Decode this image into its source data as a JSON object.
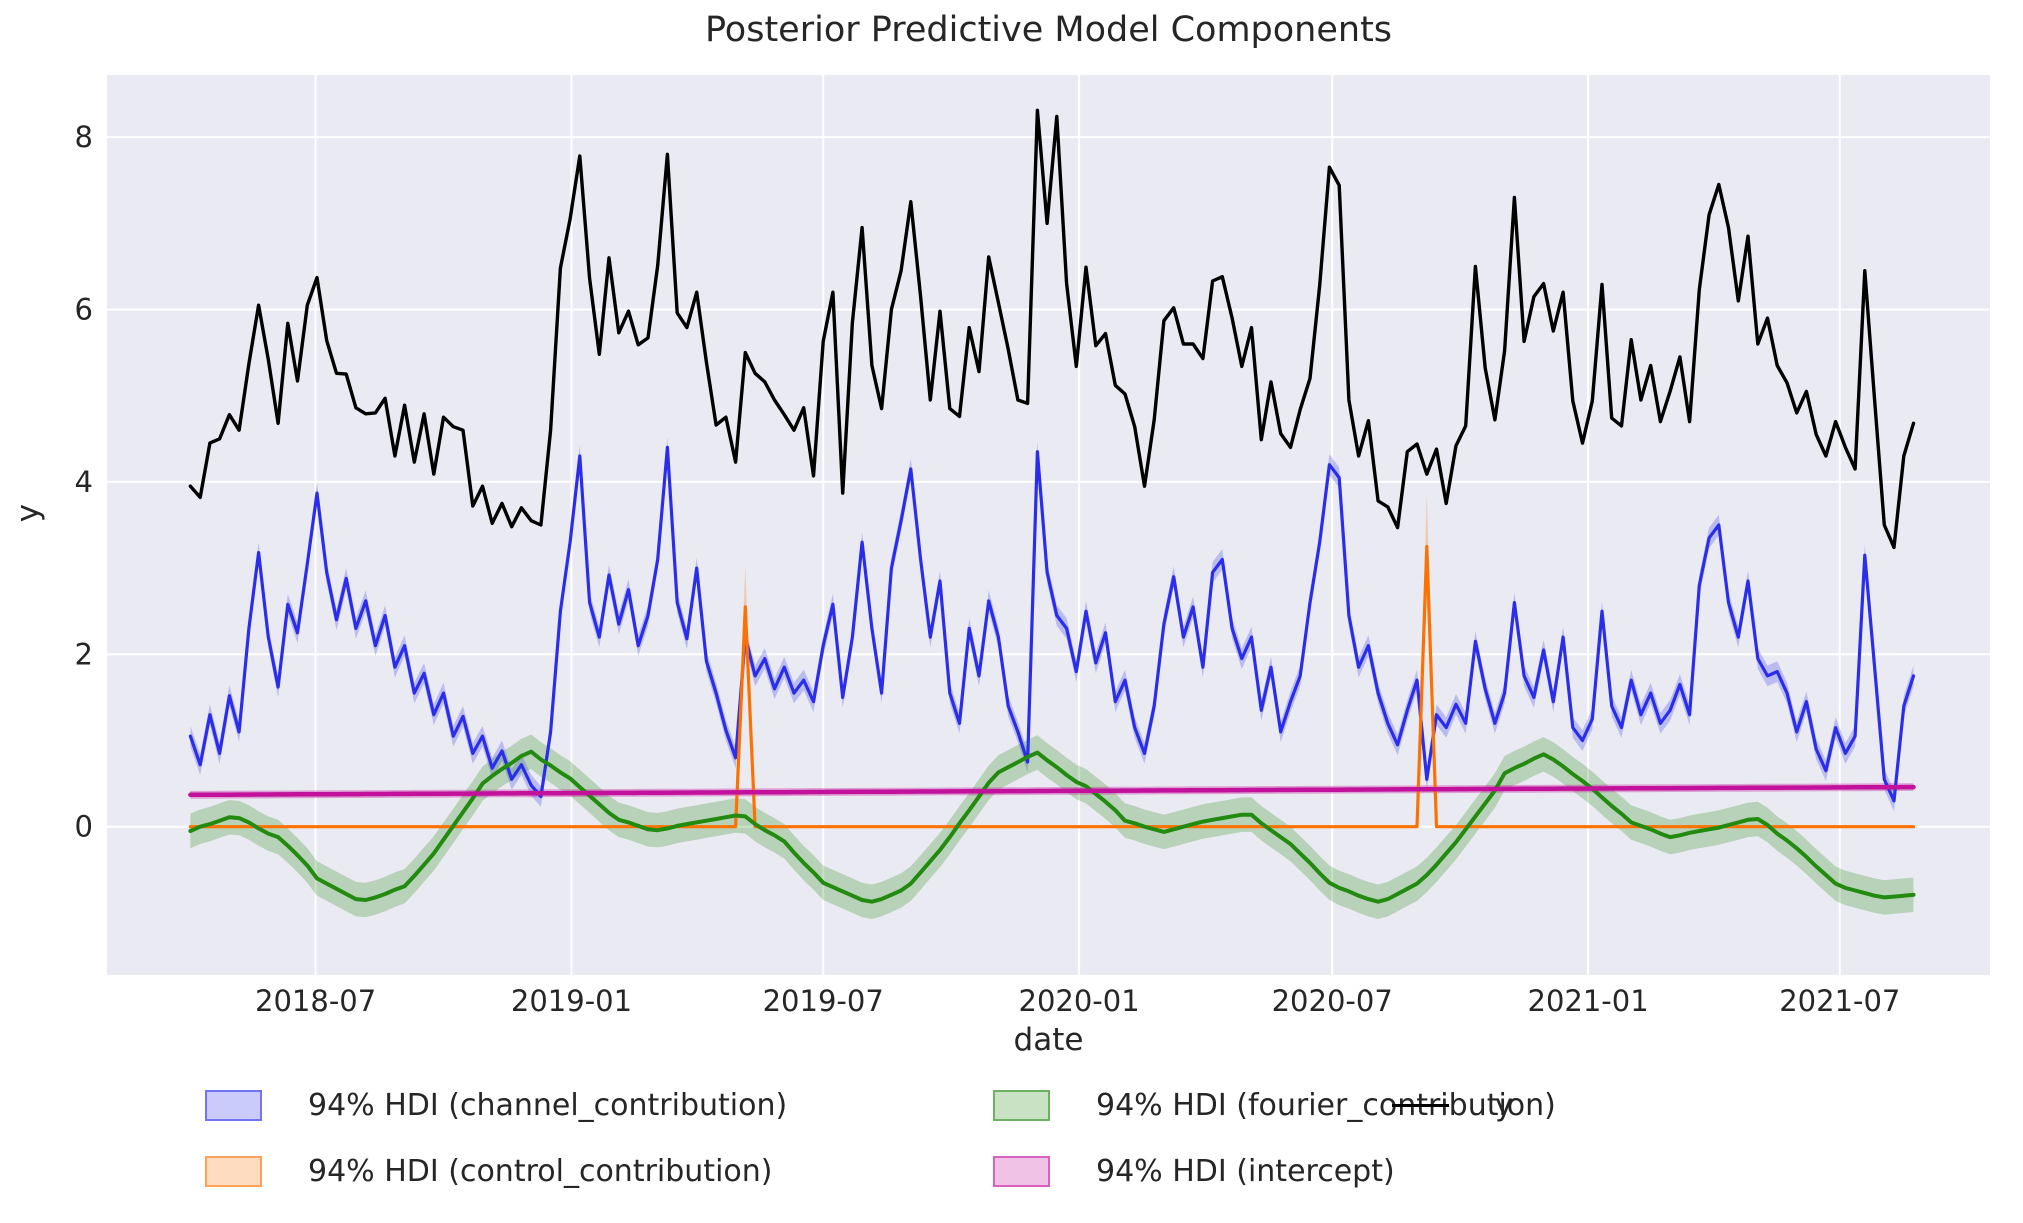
{
  "title": "Posterior Predictive Model Components",
  "axes": {
    "xlabel": "date",
    "ylabel": "y",
    "x_tick_labels": [
      "2018-07",
      "2019-01",
      "2019-07",
      "2020-01",
      "2020-07",
      "2021-01",
      "2021-07"
    ],
    "x_tick_dates": [
      "2018-07-01",
      "2019-01-01",
      "2019-07-01",
      "2020-01-01",
      "2020-07-01",
      "2021-01-01",
      "2021-07-01"
    ],
    "y_tick_labels": [
      "8",
      "6",
      "4",
      "2",
      "0"
    ],
    "y_tick_values": [
      8,
      6,
      4,
      2,
      0
    ],
    "x_domain": [
      "2018-02-01",
      "2021-10-17"
    ],
    "y_domain": [
      -1.72,
      8.72
    ],
    "grid": "on",
    "background": "#eaeaf2",
    "grid_color": "#ffffff"
  },
  "legend": {
    "items": [
      {
        "label": "94% HDI (channel_contribution)",
        "color": "#2a2eec",
        "swatch": "patch"
      },
      {
        "label": "94% HDI (control_contribution)",
        "color": "#fc7202",
        "swatch": "patch"
      },
      {
        "label": "94% HDI (fourier_contribution)",
        "color": "#228a0f",
        "swatch": "patch"
      },
      {
        "label": "94% HDI (intercept)",
        "color": "#c2119b",
        "swatch": "patch"
      },
      {
        "label": "y",
        "color": "#000000",
        "swatch": "line"
      }
    ]
  },
  "chart_data": {
    "type": "line",
    "x_start": "2018-04-02",
    "freq_days": 7,
    "n": 178,
    "title": "Posterior Predictive Model Components",
    "xlabel": "date",
    "ylabel": "y",
    "series": [
      {
        "name": "y",
        "color": "#000000",
        "band": false,
        "values": [
          3.95,
          3.82,
          4.45,
          4.5,
          4.78,
          4.6,
          5.37,
          6.05,
          5.42,
          4.68,
          5.84,
          5.17,
          6.05,
          6.37,
          5.64,
          5.26,
          5.25,
          4.86,
          4.79,
          4.8,
          4.97,
          4.3,
          4.89,
          4.23,
          4.79,
          4.09,
          4.75,
          4.64,
          4.6,
          3.72,
          3.95,
          3.52,
          3.75,
          3.48,
          3.7,
          3.55,
          3.5,
          4.6,
          6.48,
          7.05,
          7.78,
          6.36,
          5.48,
          6.6,
          5.73,
          5.98,
          5.59,
          5.67,
          6.51,
          7.8,
          5.96,
          5.79,
          6.2,
          5.39,
          4.66,
          4.75,
          4.23,
          5.5,
          5.26,
          5.16,
          4.95,
          4.78,
          4.6,
          4.86,
          4.07,
          5.63,
          6.2,
          3.87,
          5.85,
          6.95,
          5.35,
          4.85,
          6.0,
          6.45,
          7.25,
          6.15,
          4.95,
          5.98,
          4.85,
          4.76,
          5.79,
          5.28,
          6.61,
          6.08,
          5.54,
          4.95,
          4.91,
          8.31,
          7.0,
          8.24,
          6.3,
          5.34,
          6.49,
          5.58,
          5.72,
          5.12,
          5.02,
          4.64,
          3.95,
          4.72,
          5.87,
          6.02,
          5.6,
          5.6,
          5.43,
          6.33,
          6.38,
          5.9,
          5.34,
          5.79,
          4.49,
          5.16,
          4.56,
          4.4,
          4.84,
          5.2,
          6.28,
          7.65,
          7.44,
          4.95,
          4.3,
          4.71,
          3.78,
          3.71,
          3.47,
          4.35,
          4.44,
          4.09,
          4.38,
          3.75,
          4.42,
          4.65,
          6.5,
          5.32,
          4.72,
          5.52,
          7.3,
          5.63,
          6.15,
          6.3,
          5.75,
          6.2,
          4.94,
          4.45,
          4.94,
          6.29,
          4.74,
          4.65,
          5.65,
          4.95,
          5.35,
          4.7,
          5.05,
          5.45,
          4.7,
          6.23,
          7.1,
          7.45,
          6.95,
          6.1,
          6.85,
          5.6,
          5.9,
          5.35,
          5.15,
          4.8,
          5.05,
          4.55,
          4.3,
          4.7,
          4.4,
          4.15,
          6.45,
          4.95,
          3.5,
          3.24,
          4.3,
          4.68
        ]
      },
      {
        "name": "channel_contribution",
        "color": "#2a2eec",
        "band": true,
        "band_halfwidth": 0.12,
        "band_alpha": 0.25,
        "values": [
          1.05,
          0.72,
          1.3,
          0.85,
          1.52,
          1.1,
          2.3,
          3.18,
          2.2,
          1.62,
          2.58,
          2.25,
          3.05,
          3.87,
          2.95,
          2.4,
          2.88,
          2.3,
          2.62,
          2.1,
          2.45,
          1.85,
          2.1,
          1.55,
          1.78,
          1.3,
          1.55,
          1.05,
          1.28,
          0.85,
          1.05,
          0.68,
          0.88,
          0.55,
          0.72,
          0.48,
          0.35,
          1.1,
          2.5,
          3.3,
          4.3,
          2.6,
          2.2,
          2.92,
          2.35,
          2.75,
          2.1,
          2.45,
          3.1,
          4.4,
          2.6,
          2.18,
          3.0,
          1.92,
          1.55,
          1.12,
          0.8,
          2.2,
          1.75,
          1.95,
          1.6,
          1.85,
          1.55,
          1.7,
          1.45,
          2.1,
          2.58,
          1.5,
          2.2,
          3.3,
          2.3,
          1.55,
          3.0,
          3.55,
          4.15,
          3.1,
          2.2,
          2.85,
          1.55,
          1.2,
          2.3,
          1.75,
          2.62,
          2.2,
          1.4,
          1.1,
          0.75,
          4.35,
          2.95,
          2.45,
          2.3,
          1.8,
          2.5,
          1.9,
          2.25,
          1.45,
          1.7,
          1.15,
          0.85,
          1.4,
          2.35,
          2.9,
          2.2,
          2.55,
          1.85,
          2.95,
          3.1,
          2.3,
          1.95,
          2.2,
          1.35,
          1.85,
          1.1,
          1.45,
          1.75,
          2.6,
          3.3,
          4.2,
          4.05,
          2.45,
          1.85,
          2.1,
          1.55,
          1.2,
          0.95,
          1.35,
          1.7,
          0.55,
          1.3,
          1.15,
          1.42,
          1.2,
          2.15,
          1.6,
          1.2,
          1.55,
          2.6,
          1.75,
          1.5,
          2.05,
          1.45,
          2.2,
          1.15,
          1.0,
          1.25,
          2.5,
          1.4,
          1.15,
          1.7,
          1.3,
          1.55,
          1.2,
          1.35,
          1.65,
          1.3,
          2.8,
          3.35,
          3.5,
          2.6,
          2.2,
          2.85,
          1.95,
          1.75,
          1.8,
          1.55,
          1.1,
          1.45,
          0.9,
          0.65,
          1.15,
          0.85,
          1.05,
          3.15,
          1.85,
          0.55,
          0.3,
          1.4,
          1.75
        ]
      },
      {
        "name": "control_contribution",
        "color": "#fc7202",
        "band": true,
        "band_rel": 0.18,
        "band_alpha": 0.28,
        "values": [
          0,
          0,
          0,
          0,
          0,
          0,
          0,
          0,
          0,
          0,
          0,
          0,
          0,
          0,
          0,
          0,
          0,
          0,
          0,
          0,
          0,
          0,
          0,
          0,
          0,
          0,
          0,
          0,
          0,
          0,
          0,
          0,
          0,
          0,
          0,
          0,
          0,
          0,
          0,
          0,
          0,
          0,
          0,
          0,
          0,
          0,
          0,
          0,
          0,
          0,
          0,
          0,
          0,
          0,
          0,
          0,
          0,
          2.55,
          0,
          0,
          0,
          0,
          0,
          0,
          0,
          0,
          0,
          0,
          0,
          0,
          0,
          0,
          0,
          0,
          0,
          0,
          0,
          0,
          0,
          0,
          0,
          0,
          0,
          0,
          0,
          0,
          0,
          0,
          0,
          0,
          0,
          0,
          0,
          0,
          0,
          0,
          0,
          0,
          0,
          0,
          0,
          0,
          0,
          0,
          0,
          0,
          0,
          0,
          0,
          0,
          0,
          0,
          0,
          0,
          0,
          0,
          0,
          0,
          0,
          0,
          0,
          0,
          0,
          0,
          0,
          0,
          0,
          3.25,
          0,
          0,
          0,
          0,
          0,
          0,
          0,
          0,
          0,
          0,
          0,
          0,
          0,
          0,
          0,
          0,
          0,
          0,
          0,
          0,
          0,
          0,
          0,
          0,
          0,
          0,
          0,
          0,
          0,
          0,
          0,
          0,
          0,
          0,
          0,
          0,
          0,
          0,
          0,
          0,
          0,
          0,
          0,
          0,
          0,
          0,
          0,
          0,
          0,
          0
        ]
      },
      {
        "name": "fourier_contribution",
        "color": "#228a0f",
        "band": true,
        "band_halfwidth": 0.2,
        "band_alpha": 0.25,
        "values": [
          -0.05,
          0.0,
          0.03,
          0.07,
          0.11,
          0.1,
          0.05,
          -0.02,
          -0.08,
          -0.12,
          -0.22,
          -0.33,
          -0.45,
          -0.6,
          -0.66,
          -0.72,
          -0.78,
          -0.84,
          -0.85,
          -0.82,
          -0.78,
          -0.73,
          -0.69,
          -0.57,
          -0.44,
          -0.31,
          -0.15,
          0.01,
          0.17,
          0.33,
          0.5,
          0.59,
          0.67,
          0.74,
          0.82,
          0.87,
          0.78,
          0.71,
          0.63,
          0.56,
          0.46,
          0.36,
          0.26,
          0.16,
          0.08,
          0.05,
          0.01,
          -0.03,
          -0.04,
          -0.02,
          0.01,
          0.03,
          0.05,
          0.07,
          0.09,
          0.11,
          0.13,
          0.12,
          0.03,
          -0.04,
          -0.1,
          -0.17,
          -0.3,
          -0.42,
          -0.53,
          -0.65,
          -0.7,
          -0.75,
          -0.8,
          -0.85,
          -0.87,
          -0.84,
          -0.79,
          -0.74,
          -0.66,
          -0.53,
          -0.4,
          -0.27,
          -0.12,
          0.04,
          0.19,
          0.35,
          0.51,
          0.63,
          0.69,
          0.75,
          0.81,
          0.86,
          0.77,
          0.69,
          0.6,
          0.52,
          0.47,
          0.38,
          0.29,
          0.19,
          0.07,
          0.04,
          0.0,
          -0.03,
          -0.06,
          -0.03,
          0.0,
          0.03,
          0.06,
          0.08,
          0.1,
          0.12,
          0.14,
          0.14,
          0.04,
          -0.04,
          -0.12,
          -0.2,
          -0.31,
          -0.42,
          -0.54,
          -0.65,
          -0.71,
          -0.75,
          -0.8,
          -0.84,
          -0.87,
          -0.84,
          -0.78,
          -0.72,
          -0.66,
          -0.56,
          -0.44,
          -0.31,
          -0.18,
          -0.03,
          0.12,
          0.27,
          0.42,
          0.62,
          0.68,
          0.73,
          0.79,
          0.84,
          0.78,
          0.7,
          0.61,
          0.53,
          0.44,
          0.34,
          0.24,
          0.15,
          0.05,
          0.01,
          -0.03,
          -0.08,
          -0.12,
          -0.1,
          -0.07,
          -0.05,
          -0.03,
          -0.01,
          0.02,
          0.05,
          0.08,
          0.09,
          0.02,
          -0.08,
          -0.16,
          -0.25,
          -0.35,
          -0.46,
          -0.56,
          -0.66,
          -0.71,
          -0.74,
          -0.77,
          -0.8,
          -0.82,
          -0.81,
          -0.8,
          -0.79
        ]
      },
      {
        "name": "intercept",
        "color": "#c2119b",
        "band": true,
        "band_halfwidth": 0.045,
        "band_alpha": 0.35,
        "trend": {
          "start": 0.37,
          "end": 0.46
        }
      }
    ],
    "annotations": [
      {
        "name": "control-spike-1",
        "date": "2019-05-06",
        "peak": 2.55
      },
      {
        "name": "control-spike-2",
        "date": "2020-09-07",
        "peak": 3.25
      }
    ]
  }
}
